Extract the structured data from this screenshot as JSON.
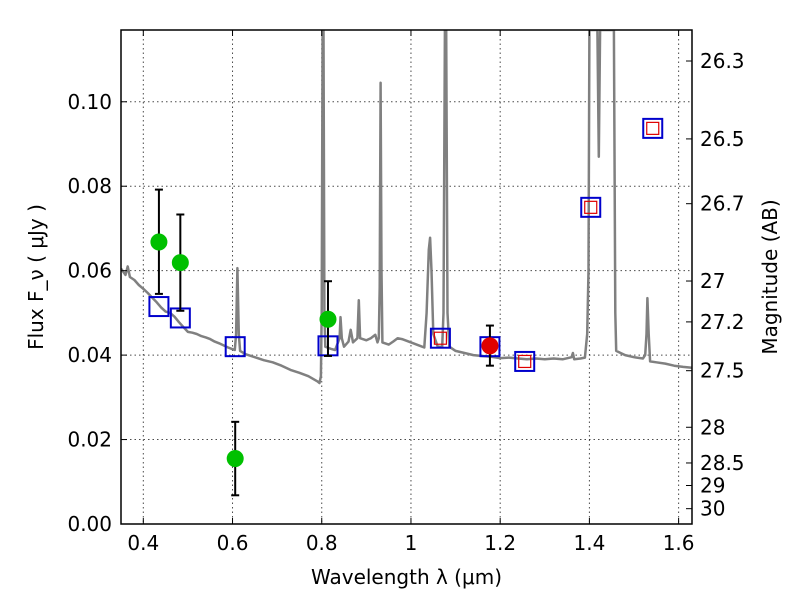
{
  "chart_data": {
    "type": "scatter",
    "xlabel": "Wavelength  λ (μm)",
    "ylabel": "Flux  F_ν  ( μJy )",
    "ylabel_right": "Magnitude (AB)",
    "xlim": [
      0.35,
      1.63
    ],
    "ylim": [
      0.0,
      0.117
    ],
    "grid": true,
    "x_ticks": [
      0.4,
      0.6,
      0.8,
      1.0,
      1.2,
      1.4,
      1.6
    ],
    "x_tick_labels": [
      "0.4",
      "0.6",
      "0.8",
      "1",
      "1.2",
      "1.4",
      "1.6"
    ],
    "y_ticks": [
      0.0,
      0.02,
      0.04,
      0.06,
      0.08,
      0.1
    ],
    "y_tick_labels": [
      "0.00",
      "0.02",
      "0.04",
      "0.06",
      "0.08",
      "0.10"
    ],
    "right_ticks": [
      {
        "label": "26.3",
        "mag": 26.3
      },
      {
        "label": "26.5",
        "mag": 26.5
      },
      {
        "label": "26.7",
        "mag": 26.7
      },
      {
        "label": "27",
        "mag": 27.0
      },
      {
        "label": "27.2",
        "mag": 27.2
      },
      {
        "label": "27.5",
        "mag": 27.5
      },
      {
        "label": "28",
        "mag": 28.0
      },
      {
        "label": "28.5",
        "mag": 28.5
      },
      {
        "label": "29",
        "mag": 29.0
      },
      {
        "label": "30",
        "mag": 30.0
      }
    ],
    "series": [
      {
        "name": "Model spectrum",
        "style": "line",
        "color": "#808080",
        "points": [
          [
            0.35,
            0.0605
          ],
          [
            0.36,
            0.059
          ],
          [
            0.365,
            0.061
          ],
          [
            0.37,
            0.0585
          ],
          [
            0.38,
            0.0578
          ],
          [
            0.39,
            0.0566
          ],
          [
            0.4,
            0.0557
          ],
          [
            0.41,
            0.0547
          ],
          [
            0.42,
            0.0536
          ],
          [
            0.43,
            0.0525
          ],
          [
            0.44,
            0.0513
          ],
          [
            0.45,
            0.0503
          ],
          [
            0.46,
            0.05
          ],
          [
            0.47,
            0.0491
          ],
          [
            0.48,
            0.0478
          ],
          [
            0.49,
            0.0466
          ],
          [
            0.5,
            0.0455
          ],
          [
            0.51,
            0.0453
          ],
          [
            0.52,
            0.045
          ],
          [
            0.53,
            0.0445
          ],
          [
            0.54,
            0.0442
          ],
          [
            0.55,
            0.0438
          ],
          [
            0.56,
            0.0432
          ],
          [
            0.57,
            0.0428
          ],
          [
            0.58,
            0.0423
          ],
          [
            0.59,
            0.0418
          ],
          [
            0.6,
            0.0414
          ],
          [
            0.605,
            0.0412
          ],
          [
            0.608,
            0.045
          ],
          [
            0.611,
            0.0606
          ],
          [
            0.614,
            0.045
          ],
          [
            0.617,
            0.041
          ],
          [
            0.63,
            0.0402
          ],
          [
            0.65,
            0.0395
          ],
          [
            0.67,
            0.0388
          ],
          [
            0.69,
            0.0383
          ],
          [
            0.71,
            0.0375
          ],
          [
            0.73,
            0.0365
          ],
          [
            0.75,
            0.0358
          ],
          [
            0.77,
            0.035
          ],
          [
            0.79,
            0.0338
          ],
          [
            0.795,
            0.0334
          ],
          [
            0.798,
            0.035
          ],
          [
            0.8,
            0.05
          ],
          [
            0.802,
            0.117
          ],
          [
            0.804,
            0.117
          ],
          [
            0.806,
            0.05
          ],
          [
            0.808,
            0.042
          ],
          [
            0.82,
            0.0415
          ],
          [
            0.83,
            0.0412
          ],
          [
            0.84,
            0.044
          ],
          [
            0.842,
            0.049
          ],
          [
            0.845,
            0.044
          ],
          [
            0.85,
            0.042
          ],
          [
            0.86,
            0.0432
          ],
          [
            0.865,
            0.046
          ],
          [
            0.87,
            0.043
          ],
          [
            0.88,
            0.044
          ],
          [
            0.883,
            0.053
          ],
          [
            0.886,
            0.044
          ],
          [
            0.9,
            0.0435
          ],
          [
            0.91,
            0.044
          ],
          [
            0.92,
            0.0448
          ],
          [
            0.925,
            0.043
          ],
          [
            0.928,
            0.044
          ],
          [
            0.93,
            0.056
          ],
          [
            0.932,
            0.1045
          ],
          [
            0.934,
            0.06
          ],
          [
            0.936,
            0.043
          ],
          [
            0.95,
            0.0425
          ],
          [
            0.96,
            0.0432
          ],
          [
            0.97,
            0.044
          ],
          [
            0.98,
            0.0438
          ],
          [
            1.0,
            0.043
          ],
          [
            1.02,
            0.0422
          ],
          [
            1.03,
            0.0418
          ],
          [
            1.035,
            0.05
          ],
          [
            1.04,
            0.065
          ],
          [
            1.043,
            0.0678
          ],
          [
            1.046,
            0.06
          ],
          [
            1.05,
            0.045
          ],
          [
            1.06,
            0.042
          ],
          [
            1.07,
            0.042
          ],
          [
            1.073,
            0.05
          ],
          [
            1.076,
            0.117
          ],
          [
            1.079,
            0.117
          ],
          [
            1.082,
            0.05
          ],
          [
            1.086,
            0.042
          ],
          [
            1.1,
            0.041
          ],
          [
            1.12,
            0.0405
          ],
          [
            1.14,
            0.04
          ],
          [
            1.16,
            0.0398
          ],
          [
            1.18,
            0.0396
          ],
          [
            1.2,
            0.0393
          ],
          [
            1.22,
            0.0394
          ],
          [
            1.24,
            0.0392
          ],
          [
            1.26,
            0.039
          ],
          [
            1.28,
            0.0392
          ],
          [
            1.3,
            0.039
          ],
          [
            1.32,
            0.0392
          ],
          [
            1.34,
            0.039
          ],
          [
            1.36,
            0.0395
          ],
          [
            1.363,
            0.0405
          ],
          [
            1.366,
            0.039
          ],
          [
            1.38,
            0.0392
          ],
          [
            1.39,
            0.0394
          ],
          [
            1.395,
            0.045
          ],
          [
            1.398,
            0.06
          ],
          [
            1.4,
            0.117
          ],
          [
            1.41,
            0.117
          ],
          [
            1.415,
            0.117
          ],
          [
            1.418,
            0.117
          ],
          [
            1.421,
            0.087
          ],
          [
            1.424,
            0.117
          ],
          [
            1.44,
            0.117
          ],
          [
            1.455,
            0.117
          ],
          [
            1.458,
            0.05
          ],
          [
            1.46,
            0.041
          ],
          [
            1.48,
            0.04
          ],
          [
            1.5,
            0.0395
          ],
          [
            1.52,
            0.0392
          ],
          [
            1.525,
            0.04
          ],
          [
            1.528,
            0.045
          ],
          [
            1.53,
            0.0535
          ],
          [
            1.533,
            0.045
          ],
          [
            1.536,
            0.0385
          ],
          [
            1.55,
            0.0383
          ],
          [
            1.57,
            0.038
          ],
          [
            1.59,
            0.0375
          ],
          [
            1.61,
            0.0372
          ],
          [
            1.63,
            0.037
          ]
        ]
      },
      {
        "name": "Observed (green)",
        "style": "marker-circle",
        "color": "#00c000",
        "points": [
          {
            "x": 0.435,
            "y": 0.0668,
            "err_lo": 0.0545,
            "err_hi": 0.0792
          },
          {
            "x": 0.483,
            "y": 0.0619,
            "err_lo": 0.0505,
            "err_hi": 0.0733
          },
          {
            "x": 0.606,
            "y": 0.0155,
            "err_lo": 0.0068,
            "err_hi": 0.0242
          },
          {
            "x": 0.814,
            "y": 0.0485,
            "err_lo": 0.0398,
            "err_hi": 0.0575
          }
        ]
      },
      {
        "name": "Observed (red)",
        "style": "marker-circle",
        "color": "#e00000",
        "points": [
          {
            "x": 1.177,
            "y": 0.0422,
            "err_lo": 0.0375,
            "err_hi": 0.047
          }
        ]
      },
      {
        "name": "Model photometry (blue)",
        "style": "marker-square",
        "color": "#0000cc",
        "points": [
          {
            "x": 0.435,
            "y": 0.0515
          },
          {
            "x": 0.483,
            "y": 0.0488
          },
          {
            "x": 0.606,
            "y": 0.042
          },
          {
            "x": 0.814,
            "y": 0.0422
          },
          {
            "x": 1.066,
            "y": 0.044
          },
          {
            "x": 1.177,
            "y": 0.042
          },
          {
            "x": 1.255,
            "y": 0.0385
          },
          {
            "x": 1.403,
            "y": 0.075
          },
          {
            "x": 1.542,
            "y": 0.0937
          }
        ]
      },
      {
        "name": "Model photometry (red)",
        "style": "marker-square-small",
        "color": "#e00000",
        "points": [
          {
            "x": 1.066,
            "y": 0.044
          },
          {
            "x": 1.255,
            "y": 0.0385
          },
          {
            "x": 1.403,
            "y": 0.075
          },
          {
            "x": 1.542,
            "y": 0.0937
          }
        ]
      }
    ]
  }
}
